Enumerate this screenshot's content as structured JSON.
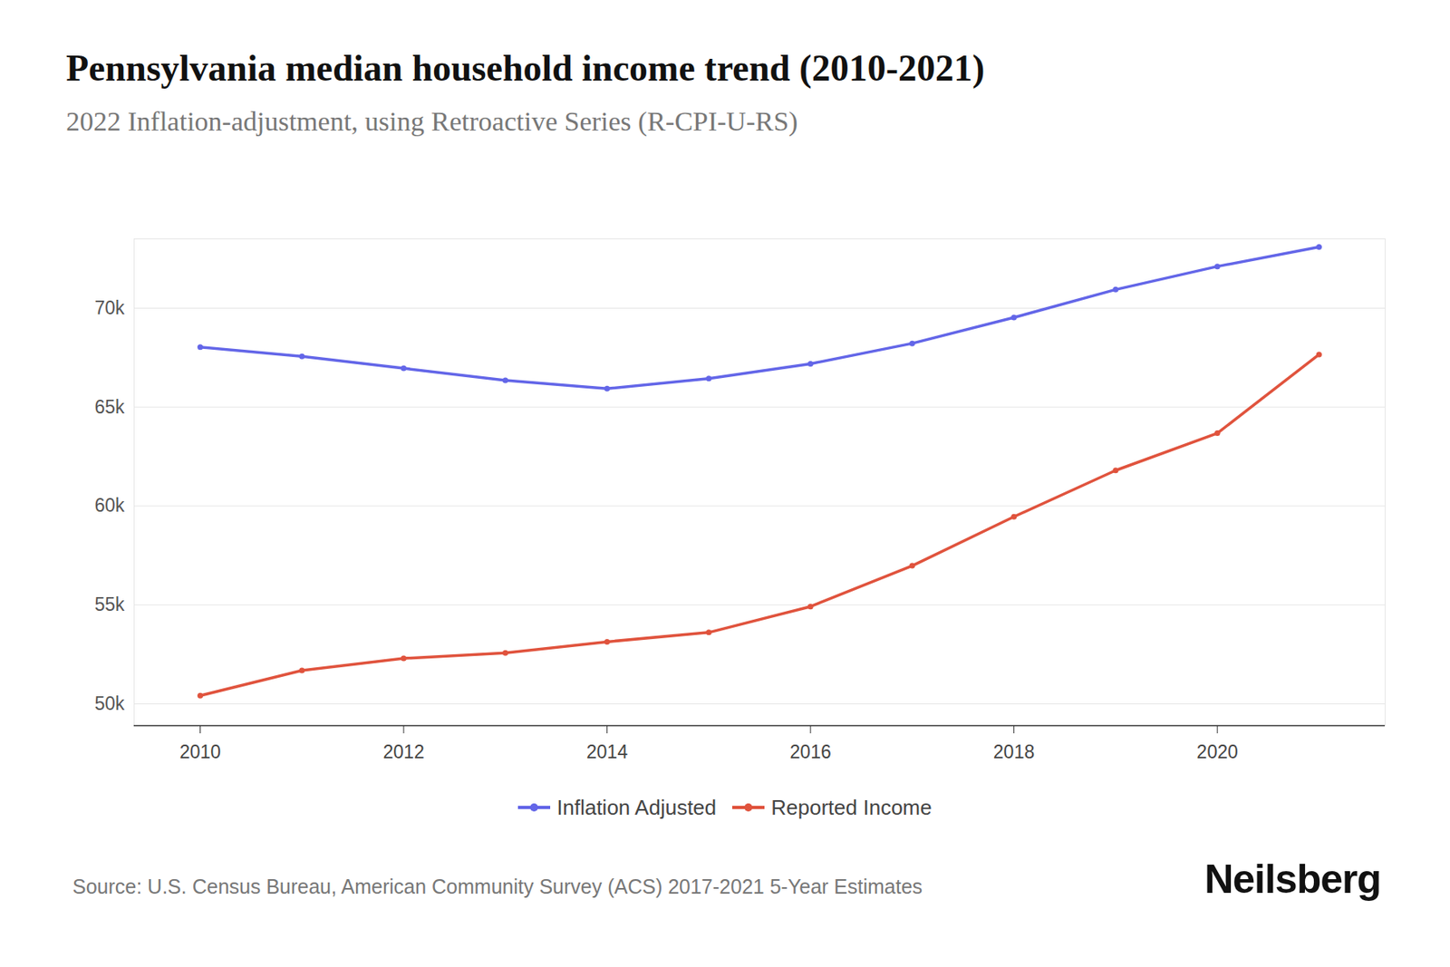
{
  "chart_data": {
    "type": "line",
    "title": "Pennsylvania median household income trend (2010-2021)",
    "subtitle": "2022 Inflation-adjustment, using Retroactive Series (R-CPI-U-RS)",
    "source": "Source: U.S. Census Bureau, American Community Survey (ACS) 2017-2021 5-Year Estimates",
    "brand": "Neilsberg",
    "x": [
      2010,
      2011,
      2012,
      2013,
      2014,
      2015,
      2016,
      2017,
      2018,
      2019,
      2020,
      2021
    ],
    "series": [
      {
        "name": "Inflation Adjusted",
        "color": "#6366e8",
        "marker": "circle",
        "values": [
          68030,
          67560,
          66960,
          66350,
          65930,
          66440,
          67190,
          68220,
          69530,
          70940,
          72110,
          73090
        ]
      },
      {
        "name": "Reported Income",
        "color": "#e0533d",
        "marker": "circle",
        "values": [
          50420,
          51690,
          52300,
          52580,
          53140,
          53610,
          54920,
          56980,
          59460,
          61800,
          63680,
          67660
        ]
      }
    ],
    "xlim": [
      2009.35,
      2021.65
    ],
    "xticks": [
      2010,
      2012,
      2014,
      2016,
      2018,
      2020
    ],
    "ylim": [
      48900,
      73500
    ],
    "yticks": [
      {
        "value": 50000,
        "label": "50k"
      },
      {
        "value": 55000,
        "label": "55k"
      },
      {
        "value": 60000,
        "label": "60k"
      },
      {
        "value": 65000,
        "label": "65k"
      },
      {
        "value": 70000,
        "label": "70k"
      }
    ],
    "grid": true,
    "legend": "bottom"
  }
}
